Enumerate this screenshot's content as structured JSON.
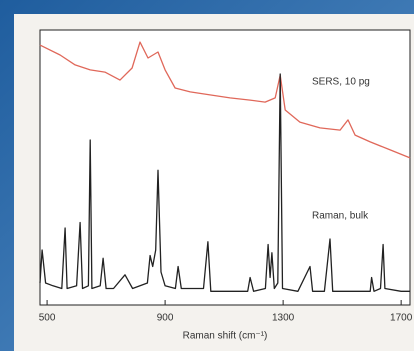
{
  "chart_data": {
    "type": "line",
    "x_label": "Raman shift (cm⁻¹)",
    "annotations": [
      "SERS, 10 pg",
      "Raman, bulk"
    ],
    "xlim": [
      476,
      1730
    ],
    "xticks": [
      500,
      900,
      1300,
      1700
    ],
    "ylim": [
      0,
      100
    ],
    "series": [
      {
        "color": "#e0685a",
        "x": [
          476,
          544,
          595,
          646,
          696,
          747,
          788,
          815,
          842,
          876,
          900,
          934,
          985,
          1052,
          1120,
          1188,
          1239,
          1273,
          1290,
          1307,
          1357,
          1425,
          1493,
          1520,
          1544,
          1595,
          1663,
          1730
        ],
        "values": [
          94.5,
          90.9,
          87.3,
          85.5,
          84.7,
          81.8,
          86.2,
          95.6,
          89.8,
          92,
          85.5,
          78.9,
          77.5,
          76.4,
          75.3,
          74.5,
          73.8,
          75.3,
          83.6,
          70.9,
          66.5,
          64.4,
          63.6,
          67.3,
          61.8,
          59.3,
          56.4,
          53.5
        ]
      },
      {
        "color": "#222222",
        "x": [
          476,
          483,
          495,
          520,
          550,
          561,
          568,
          600,
          612,
          620,
          640,
          646,
          652,
          680,
          690,
          700,
          725,
          764,
          790,
          840,
          849,
          858,
          868,
          876,
          886,
          900,
          935,
          944,
          955,
          1030,
          1045,
          1055,
          1180,
          1188,
          1200,
          1240,
          1249,
          1256,
          1262,
          1270,
          1282,
          1290,
          1298,
          1350,
          1391,
          1400,
          1440,
          1459,
          1468,
          1595,
          1600,
          1608,
          1630,
          1639,
          1645,
          1700,
          1730
        ],
        "values": [
          8,
          20,
          8,
          7,
          6,
          28,
          6,
          7,
          30,
          6,
          7,
          60,
          6,
          7,
          17,
          6,
          6,
          11,
          6,
          8,
          18,
          14,
          20,
          49,
          12,
          7,
          6,
          14,
          6,
          6,
          23,
          5,
          5,
          10,
          5,
          6,
          22,
          10,
          19,
          6,
          8,
          84,
          6,
          5,
          14,
          5,
          5,
          24,
          5,
          5,
          10,
          5,
          6,
          22,
          6,
          5,
          5
        ]
      }
    ]
  }
}
